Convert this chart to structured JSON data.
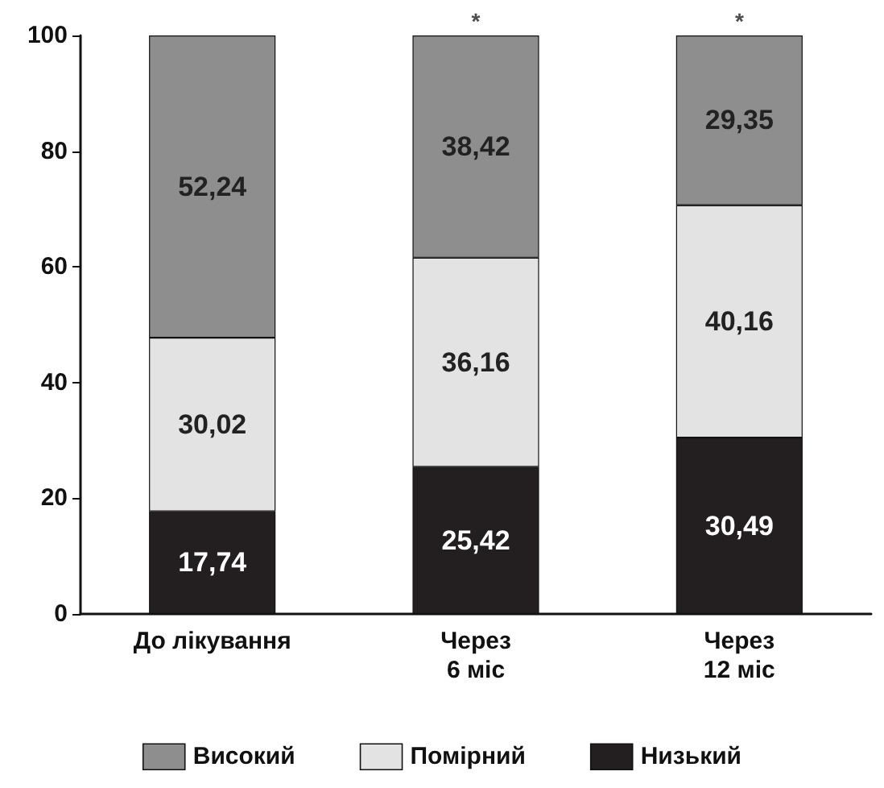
{
  "chart_data": {
    "type": "bar",
    "stacked": true,
    "categories": [
      "До лікування",
      "Через\n6 міс",
      "Через\n12 міс"
    ],
    "series": [
      {
        "name": "Низький",
        "color": "#231f20",
        "values": [
          17.74,
          25.42,
          30.49
        ],
        "value_labels": [
          "17,74",
          "25,42",
          "30,49"
        ]
      },
      {
        "name": "Помірний",
        "color": "#e3e3e3",
        "values": [
          30.02,
          36.16,
          40.16
        ],
        "value_labels": [
          "30,02",
          "36,16",
          "40,16"
        ]
      },
      {
        "name": "Високий",
        "color": "#8e8e8e",
        "values": [
          52.24,
          38.42,
          29.35
        ],
        "value_labels": [
          "52,24",
          "38,42",
          "29,35"
        ]
      }
    ],
    "ylim": [
      0,
      100
    ],
    "yticks": [
      0,
      20,
      40,
      60,
      80,
      100
    ],
    "grid": false,
    "legend": "bottom",
    "annotations": [
      {
        "text": "*",
        "x": "Через\n6 міс",
        "y": 100
      },
      {
        "text": "*",
        "x": "Через\n12 міс",
        "y": 100
      }
    ]
  }
}
